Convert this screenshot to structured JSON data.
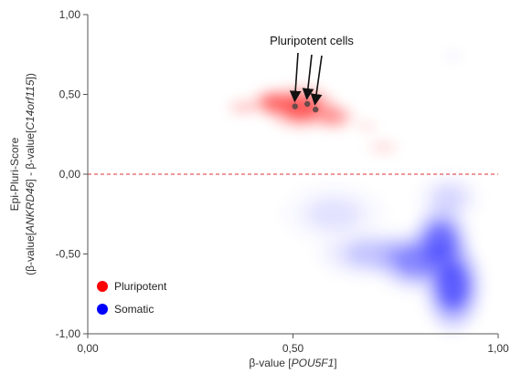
{
  "chart_data": {
    "type": "scatter",
    "title": "",
    "xlabel_parts": [
      "β-value [",
      "POU5F1",
      "]"
    ],
    "ylabel_line1": "Epi-Pluri-Score",
    "ylabel_line2_parts": [
      "(β-value[",
      "ANKRD46",
      "] - β-value[",
      "C14orf115",
      "])"
    ],
    "xlim": [
      0,
      1
    ],
    "ylim": [
      -1,
      1
    ],
    "x_ticks": [
      {
        "value": 0,
        "label": "0,00"
      },
      {
        "value": 0.5,
        "label": "0,50"
      },
      {
        "value": 1,
        "label": "1,00"
      }
    ],
    "y_ticks": [
      {
        "value": 1,
        "label": "1,00"
      },
      {
        "value": 0.5,
        "label": "0,50"
      },
      {
        "value": 0,
        "label": "0,00"
      },
      {
        "value": -0.5,
        "label": "-0,50"
      },
      {
        "value": -1,
        "label": "-1,00"
      }
    ],
    "grid": false,
    "threshold_line": {
      "y": 0,
      "color": "#e03030",
      "style": "dashed"
    },
    "legend_position": "bottom-left",
    "series": [
      {
        "name": "Pluripotent",
        "color": "#ff0000",
        "clusters": [
          {
            "x": 0.52,
            "y": 0.42,
            "sx": 0.055,
            "sy": 0.09,
            "weight": 1.0
          },
          {
            "x": 0.45,
            "y": 0.45,
            "sx": 0.035,
            "sy": 0.06,
            "weight": 0.7
          },
          {
            "x": 0.6,
            "y": 0.36,
            "sx": 0.035,
            "sy": 0.06,
            "weight": 0.5
          },
          {
            "x": 0.38,
            "y": 0.42,
            "sx": 0.03,
            "sy": 0.04,
            "weight": 0.25
          },
          {
            "x": 0.72,
            "y": 0.17,
            "sx": 0.03,
            "sy": 0.04,
            "weight": 0.15
          },
          {
            "x": 0.68,
            "y": 0.3,
            "sx": 0.02,
            "sy": 0.03,
            "weight": 0.15
          }
        ],
        "highlight_points": [
          {
            "x": 0.505,
            "y": 0.425
          },
          {
            "x": 0.535,
            "y": 0.44
          },
          {
            "x": 0.555,
            "y": 0.405
          }
        ]
      },
      {
        "name": "Somatic",
        "color": "#0000ff",
        "clusters": [
          {
            "x": 0.89,
            "y": -0.7,
            "sx": 0.045,
            "sy": 0.18,
            "weight": 1.0
          },
          {
            "x": 0.86,
            "y": -0.42,
            "sx": 0.045,
            "sy": 0.14,
            "weight": 0.85
          },
          {
            "x": 0.8,
            "y": -0.55,
            "sx": 0.06,
            "sy": 0.12,
            "weight": 0.6
          },
          {
            "x": 0.7,
            "y": -0.5,
            "sx": 0.09,
            "sy": 0.1,
            "weight": 0.3
          },
          {
            "x": 0.6,
            "y": -0.25,
            "sx": 0.08,
            "sy": 0.12,
            "weight": 0.15
          },
          {
            "x": 0.88,
            "y": -0.15,
            "sx": 0.05,
            "sy": 0.1,
            "weight": 0.2
          },
          {
            "x": 0.89,
            "y": 0.74,
            "sx": 0.012,
            "sy": 0.018,
            "weight": 0.15
          }
        ]
      }
    ],
    "annotation": {
      "text": "Pluripotent cells",
      "arrows_to": [
        {
          "x": 0.505,
          "y": 0.44
        },
        {
          "x": 0.535,
          "y": 0.455
        },
        {
          "x": 0.555,
          "y": 0.42
        }
      ]
    }
  }
}
